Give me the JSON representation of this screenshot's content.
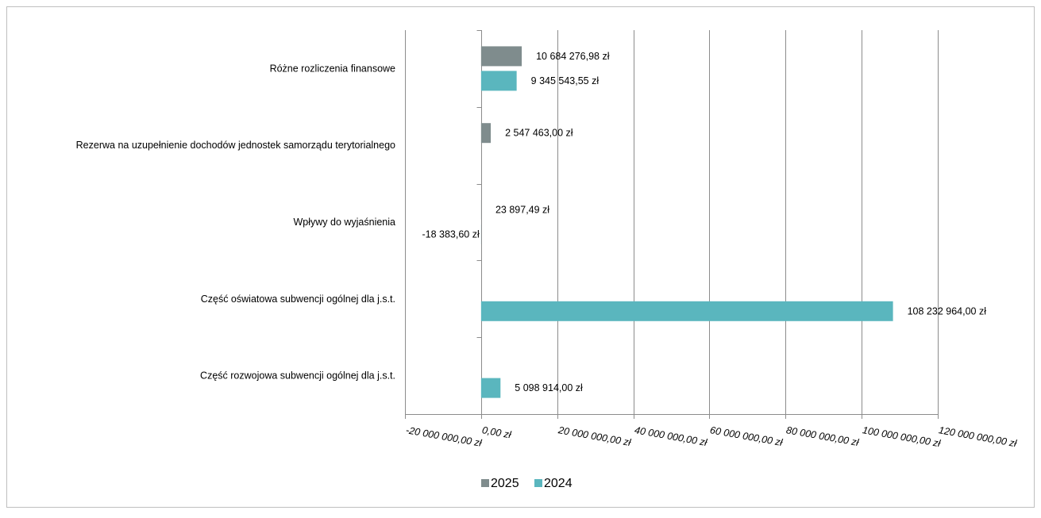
{
  "chart_data": {
    "type": "bar",
    "orientation": "horizontal",
    "categories": [
      "Różne rozliczenia finansowe",
      "Rezerwa na uzupełnienie dochodów jednostek samorządu terytorialnego",
      "Wpływy do wyjaśnienia",
      "Część oświatowa subwencji ogólnej dla j.s.t.",
      "Część rozwojowa subwencji ogólnej dla j.s.t."
    ],
    "series": [
      {
        "name": "2025",
        "color": "#7f8c8d",
        "values": [
          10684276.98,
          2547463.0,
          23897.49,
          null,
          null
        ],
        "labels": [
          "10 684 276,98 zł",
          "2 547 463,00 zł",
          "23 897,49 zł",
          "",
          ""
        ]
      },
      {
        "name": "2024",
        "color": "#5ab6be",
        "values": [
          9345543.55,
          null,
          -18383.6,
          108232964.0,
          5098914.0
        ],
        "labels": [
          "9 345 543,55 zł",
          "",
          "-18 383,60 zł",
          "108 232 964,00 zł",
          "5 098 914,00 zł"
        ]
      }
    ],
    "xlim": [
      -20000000,
      120000000
    ],
    "xticks": [
      -20000000,
      0,
      20000000,
      40000000,
      60000000,
      80000000,
      100000000,
      120000000
    ],
    "xtick_labels": [
      "-20 000 000,00 zł",
      "0,00 zł",
      "20 000 000,00 zł",
      "40 000 000,00 zł",
      "60 000 000,00 zł",
      "80 000 000,00 zł",
      "100 000 000,00 zł",
      "120 000 000,00 zł"
    ],
    "grid": true,
    "legend": "bottom"
  }
}
